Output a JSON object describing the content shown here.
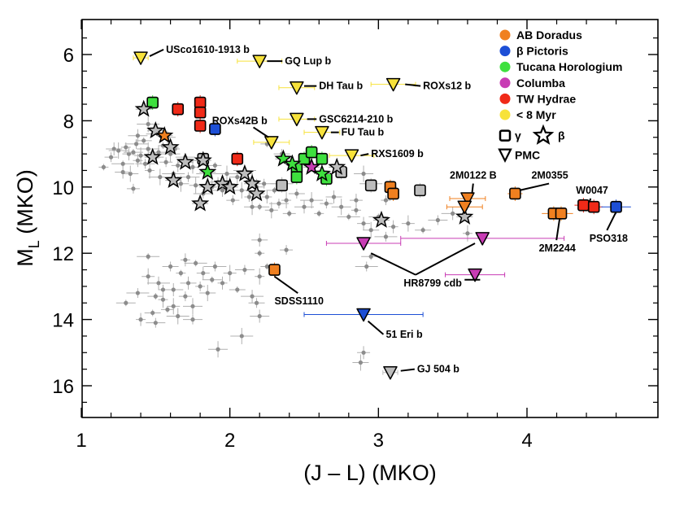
{
  "chart_data": {
    "type": "scatter",
    "title": "",
    "xlabel": "(J – L) (MKO)",
    "ylabel_main": "M",
    "ylabel_sub": "L",
    "ylabel_suffix": " (MKO)",
    "xlim": [
      1.0,
      4.8
    ],
    "ylim": [
      17.0,
      5.2
    ],
    "y_inverted": true,
    "x_ticks": [
      1,
      2,
      3,
      4
    ],
    "x_tick_labels": [
      "1",
      "2",
      "3",
      "4"
    ],
    "y_ticks": [
      6,
      8,
      10,
      12,
      14,
      16
    ],
    "y_tick_labels": [
      "6",
      "8",
      "10",
      "12",
      "14",
      "16"
    ],
    "grid": false,
    "legend_position": "top-right",
    "colors": {
      "field": "#8c8c8c",
      "AB Doradus": "#f08020",
      "beta Pictoris": "#1d4fd6",
      "Tucana Horologium": "#3ee03e",
      "Columba": "#c83cb4",
      "TW Hydrae": "#f02a18",
      "young8": "#f7e23a",
      "gray_young": "#bdbdbd"
    },
    "legend": {
      "groups": [
        {
          "name": "AB Doradus",
          "color_key": "AB Doradus"
        },
        {
          "name": "β Pictoris",
          "color_key": "beta Pictoris"
        },
        {
          "name": "Tucana Horologium",
          "color_key": "Tucana Horologium"
        },
        {
          "name": "Columba",
          "color_key": "Columba"
        },
        {
          "name": "TW Hydrae",
          "color_key": "TW Hydrae"
        },
        {
          "name": "< 8 Myr",
          "color_key": "young8"
        }
      ],
      "gamma_label": "γ",
      "beta_label": "β",
      "pmc_label": "PMC"
    },
    "field_points": [
      [
        1.15,
        9.4
      ],
      [
        1.2,
        9.1
      ],
      [
        1.22,
        8.85
      ],
      [
        1.25,
        8.9
      ],
      [
        1.28,
        9.3
      ],
      [
        1.3,
        8.8
      ],
      [
        1.32,
        9.0
      ],
      [
        1.33,
        9.6
      ],
      [
        1.35,
        8.95
      ],
      [
        1.37,
        8.7
      ],
      [
        1.38,
        9.2
      ],
      [
        1.4,
        9.05
      ],
      [
        1.42,
        8.6
      ],
      [
        1.43,
        9.3
      ],
      [
        1.45,
        8.85
      ],
      [
        1.46,
        9.5
      ],
      [
        1.48,
        8.4
      ],
      [
        1.5,
        9.1
      ],
      [
        1.52,
        8.95
      ],
      [
        1.53,
        9.7
      ],
      [
        1.55,
        8.75
      ],
      [
        1.57,
        9.25
      ],
      [
        1.58,
        8.5
      ],
      [
        1.6,
        9.0
      ],
      [
        1.62,
        9.6
      ],
      [
        1.63,
        8.85
      ],
      [
        1.65,
        9.35
      ],
      [
        1.67,
        9.9
      ],
      [
        1.7,
        9.1
      ],
      [
        1.72,
        9.7
      ],
      [
        1.75,
        9.4
      ],
      [
        1.77,
        9.95
      ],
      [
        1.8,
        9.2
      ],
      [
        1.82,
        10.2
      ],
      [
        1.85,
        9.6
      ],
      [
        1.88,
        10.0
      ],
      [
        1.9,
        9.35
      ],
      [
        1.92,
        9.85
      ],
      [
        1.95,
        10.1
      ],
      [
        1.98,
        9.6
      ],
      [
        2.0,
        9.9
      ],
      [
        2.02,
        10.4
      ],
      [
        2.05,
        9.7
      ],
      [
        2.08,
        10.1
      ],
      [
        2.1,
        9.5
      ],
      [
        2.13,
        10.3
      ],
      [
        2.15,
        9.8
      ],
      [
        2.18,
        10.0
      ],
      [
        2.2,
        10.6
      ],
      [
        2.23,
        9.9
      ],
      [
        2.25,
        10.3
      ],
      [
        2.28,
        10.7
      ],
      [
        2.3,
        10.1
      ],
      [
        2.33,
        10.5
      ],
      [
        2.35,
        9.9
      ],
      [
        2.38,
        10.4
      ],
      [
        2.4,
        10.8
      ],
      [
        2.45,
        10.2
      ],
      [
        2.5,
        10.6
      ],
      [
        2.55,
        10.4
      ],
      [
        2.6,
        10.8
      ],
      [
        2.65,
        10.5
      ],
      [
        2.7,
        10.3
      ],
      [
        2.75,
        10.6
      ],
      [
        2.8,
        10.9
      ],
      [
        2.85,
        10.7
      ],
      [
        2.9,
        11.1
      ],
      [
        2.95,
        11.3
      ],
      [
        3.0,
        10.9
      ],
      [
        3.05,
        11.5
      ],
      [
        3.1,
        11.2
      ],
      [
        3.2,
        11.1
      ],
      [
        3.3,
        11.3
      ],
      [
        3.4,
        11.0
      ],
      [
        3.5,
        10.8
      ],
      [
        3.6,
        11.4
      ],
      [
        2.25,
        8.7
      ],
      [
        2.35,
        9.0
      ],
      [
        1.38,
        8.45
      ],
      [
        1.45,
        8.1
      ],
      [
        1.52,
        8.3
      ],
      [
        1.35,
        10.05
      ],
      [
        1.28,
        9.55
      ],
      [
        2.9,
        9.6
      ],
      [
        2.95,
        9.9
      ],
      [
        3.05,
        10.4
      ],
      [
        2.85,
        10.4
      ],
      [
        2.15,
        10.6
      ],
      [
        1.3,
        13.5
      ],
      [
        1.38,
        13.2
      ],
      [
        1.4,
        14.0
      ],
      [
        1.45,
        12.7
      ],
      [
        1.48,
        13.8
      ],
      [
        1.5,
        14.1
      ],
      [
        1.52,
        12.9
      ],
      [
        1.55,
        13.4
      ],
      [
        1.58,
        13.7
      ],
      [
        1.6,
        12.4
      ],
      [
        1.62,
        13.1
      ],
      [
        1.65,
        13.9
      ],
      [
        1.67,
        12.6
      ],
      [
        1.7,
        13.3
      ],
      [
        1.72,
        12.9
      ],
      [
        1.75,
        13.6
      ],
      [
        1.77,
        12.3
      ],
      [
        1.8,
        13.0
      ],
      [
        1.82,
        12.6
      ],
      [
        1.85,
        13.2
      ],
      [
        1.88,
        12.8
      ],
      [
        1.9,
        12.4
      ],
      [
        1.95,
        12.9
      ],
      [
        2.0,
        12.6
      ],
      [
        2.05,
        13.1
      ],
      [
        2.1,
        12.5
      ],
      [
        2.15,
        13.3
      ],
      [
        2.2,
        12.7
      ],
      [
        2.25,
        12.4
      ],
      [
        2.18,
        13.5
      ],
      [
        2.2,
        13.9
      ],
      [
        2.08,
        14.5
      ],
      [
        2.2,
        12.0
      ],
      [
        2.38,
        11.9
      ],
      [
        2.2,
        11.6
      ],
      [
        1.92,
        14.9
      ],
      [
        1.45,
        12.1
      ],
      [
        1.55,
        13.1
      ],
      [
        2.9,
        15.0
      ],
      [
        2.88,
        15.3
      ],
      [
        2.95,
        12.1
      ],
      [
        2.92,
        12.4
      ],
      [
        1.7,
        12.2
      ],
      [
        1.62,
        13.6
      ],
      [
        1.5,
        13.3
      ],
      [
        1.75,
        14.0
      ]
    ],
    "stars": [
      {
        "x": 1.42,
        "y": 7.65,
        "c": "gray_young"
      },
      {
        "x": 1.5,
        "y": 8.3,
        "c": "gray_young"
      },
      {
        "x": 1.56,
        "y": 8.45,
        "c": "AB Doradus"
      },
      {
        "x": 1.48,
        "y": 9.1,
        "c": "gray_young"
      },
      {
        "x": 1.6,
        "y": 8.8,
        "c": "gray_young"
      },
      {
        "x": 1.7,
        "y": 9.25,
        "c": "gray_young"
      },
      {
        "x": 1.62,
        "y": 9.8,
        "c": "gray_young"
      },
      {
        "x": 1.82,
        "y": 9.2,
        "c": "gray_young"
      },
      {
        "x": 1.85,
        "y": 9.55,
        "c": "Tucana Horologium"
      },
      {
        "x": 1.85,
        "y": 10.0,
        "c": "gray_young"
      },
      {
        "x": 1.95,
        "y": 9.9,
        "c": "gray_young"
      },
      {
        "x": 1.8,
        "y": 10.5,
        "c": "gray_young"
      },
      {
        "x": 2.0,
        "y": 10.0,
        "c": "gray_young"
      },
      {
        "x": 2.1,
        "y": 9.6,
        "c": "gray_young"
      },
      {
        "x": 2.15,
        "y": 9.9,
        "c": "gray_young"
      },
      {
        "x": 2.18,
        "y": 10.2,
        "c": "gray_young"
      },
      {
        "x": 2.36,
        "y": 9.15,
        "c": "Tucana Horologium"
      },
      {
        "x": 2.55,
        "y": 9.4,
        "c": "Columba"
      },
      {
        "x": 2.72,
        "y": 9.4,
        "c": "gray_young"
      },
      {
        "x": 2.42,
        "y": 9.3,
        "c": "Tucana Horologium"
      },
      {
        "x": 2.62,
        "y": 9.6,
        "c": "Tucana Horologium"
      },
      {
        "x": 3.02,
        "y": 11.0,
        "c": "gray_young"
      },
      {
        "x": 3.58,
        "y": 10.9,
        "c": "gray_young"
      }
    ],
    "squares": [
      {
        "x": 1.48,
        "y": 7.45,
        "c": "Tucana Horologium",
        "ex": 0.03
      },
      {
        "x": 1.65,
        "y": 7.65,
        "c": "TW Hydrae",
        "ex": 0.02
      },
      {
        "x": 1.8,
        "y": 7.45,
        "c": "TW Hydrae",
        "ex": 0.02
      },
      {
        "x": 1.8,
        "y": 7.75,
        "c": "TW Hydrae",
        "ex": 0.02
      },
      {
        "x": 1.8,
        "y": 8.15,
        "c": "TW Hydrae",
        "ex": 0.02
      },
      {
        "x": 1.9,
        "y": 8.25,
        "c": "beta Pictoris",
        "ex": 0.02
      },
      {
        "x": 2.05,
        "y": 9.15,
        "c": "TW Hydrae",
        "ex": 0.03
      },
      {
        "x": 1.82,
        "y": 9.15,
        "c": "gray_young",
        "ex": 0.03
      },
      {
        "x": 2.45,
        "y": 9.45,
        "c": "Tucana Horologium",
        "ex": 0.03
      },
      {
        "x": 2.5,
        "y": 9.15,
        "c": "Tucana Horologium",
        "ex": 0.03
      },
      {
        "x": 2.55,
        "y": 8.95,
        "c": "Tucana Horologium",
        "ex": 0.03
      },
      {
        "x": 2.45,
        "y": 9.7,
        "c": "Tucana Horologium",
        "ex": 0.03
      },
      {
        "x": 2.62,
        "y": 9.15,
        "c": "Tucana Horologium",
        "ex": 0.03
      },
      {
        "x": 2.65,
        "y": 9.75,
        "c": "Tucana Horologium",
        "ex": 0.03
      },
      {
        "x": 2.75,
        "y": 9.55,
        "c": "gray_young",
        "ex": 0.03
      },
      {
        "x": 2.35,
        "y": 9.95,
        "c": "gray_young",
        "ex": 0.03
      },
      {
        "x": 2.95,
        "y": 9.95,
        "c": "gray_young",
        "ex": 0.03
      },
      {
        "x": 3.08,
        "y": 10.0,
        "c": "AB Doradus",
        "ex": 0.04
      },
      {
        "x": 3.1,
        "y": 10.2,
        "c": "AB Doradus",
        "ex": 0.04
      },
      {
        "x": 3.28,
        "y": 10.1,
        "c": "gray_young",
        "ex": 0.04
      },
      {
        "x": 3.92,
        "y": 10.2,
        "c": "AB Doradus",
        "ex": 0.05
      },
      {
        "x": 4.18,
        "y": 10.8,
        "c": "AB Doradus",
        "ex": 0.08
      },
      {
        "x": 4.23,
        "y": 10.8,
        "c": "AB Doradus",
        "ex": 0.08
      },
      {
        "x": 4.38,
        "y": 10.55,
        "c": "TW Hydrae",
        "ex": 0.06
      },
      {
        "x": 4.45,
        "y": 10.6,
        "c": "TW Hydrae",
        "ex": 0.06
      },
      {
        "x": 4.6,
        "y": 10.6,
        "c": "beta Pictoris",
        "ex": 0.1
      },
      {
        "x": 2.3,
        "y": 12.5,
        "c": "AB Doradus",
        "ex": 0.04
      }
    ],
    "triangles": [
      {
        "x": 1.4,
        "y": 6.1,
        "c": "young8",
        "ex": 0.05
      },
      {
        "x": 2.2,
        "y": 6.2,
        "c": "young8",
        "ex": 0.15
      },
      {
        "x": 2.45,
        "y": 7.0,
        "c": "young8",
        "ex": 0.12
      },
      {
        "x": 3.1,
        "y": 6.9,
        "c": "young8",
        "ex": 0.15
      },
      {
        "x": 2.45,
        "y": 7.95,
        "c": "young8",
        "ex": 0.12
      },
      {
        "x": 2.62,
        "y": 8.35,
        "c": "young8",
        "ex": 0.12
      },
      {
        "x": 2.28,
        "y": 8.65,
        "c": "young8",
        "ex": 0.12
      },
      {
        "x": 2.82,
        "y": 9.05,
        "c": "young8",
        "ex": 0.15
      },
      {
        "x": 3.6,
        "y": 10.35,
        "c": "AB Doradus",
        "ex": 0.12
      },
      {
        "x": 3.58,
        "y": 10.6,
        "c": "AB Doradus",
        "ex": 0.12
      },
      {
        "x": 2.9,
        "y": 11.7,
        "c": "Columba",
        "ex": 0.25
      },
      {
        "x": 3.7,
        "y": 11.55,
        "c": "Columba",
        "ex": 0.55
      },
      {
        "x": 3.65,
        "y": 12.65,
        "c": "Columba",
        "ex": 0.2
      },
      {
        "x": 2.9,
        "y": 13.85,
        "c": "beta Pictoris",
        "ex": 0.4
      },
      {
        "x": 3.08,
        "y": 15.6,
        "c": "gray_young",
        "ex": 0.05
      }
    ],
    "annotations": [
      {
        "text": "USco1610-1913 b",
        "lx": 1.57,
        "ly": 5.85,
        "tx": 1.57,
        "ty": 5.85,
        "sx": 1.46,
        "sy": 6.05
      },
      {
        "text": "GQ Lup b",
        "lx": 2.37,
        "ly": 6.2,
        "tx": 2.37,
        "ty": 6.2,
        "sx": 2.25,
        "sy": 6.2
      },
      {
        "text": "DH Tau b",
        "lx": 2.6,
        "ly": 6.95,
        "tx": 2.6,
        "ty": 6.95,
        "sx": 2.5,
        "sy": 6.95
      },
      {
        "text": "ROXs12 b",
        "lx": 3.3,
        "ly": 6.95,
        "tx": 3.3,
        "ty": 6.95,
        "sx": 3.18,
        "sy": 6.9
      },
      {
        "text": "ROXs42B b",
        "lx": 1.88,
        "ly": 8.0,
        "tx": 1.88,
        "ty": 8.0,
        "sx": 2.26,
        "sy": 8.5
      },
      {
        "text": "GSC6214-210 b",
        "lx": 2.6,
        "ly": 7.95,
        "tx": 2.6,
        "ty": 7.95,
        "sx": 2.52,
        "sy": 7.95
      },
      {
        "text": "FU Tau b",
        "lx": 2.75,
        "ly": 8.35,
        "tx": 2.75,
        "ty": 8.35,
        "sx": 2.68,
        "sy": 8.35
      },
      {
        "text": "RXS1609 b",
        "lx": 2.95,
        "ly": 9.0,
        "tx": 2.95,
        "ty": 9.0,
        "sx": 2.88,
        "sy": 9.05
      },
      {
        "text": "2M0122 B",
        "lx": 3.48,
        "ly": 9.65,
        "tx": 3.48,
        "ty": 9.65,
        "sx": 3.63,
        "sy": 10.2
      },
      {
        "text": "2M0355",
        "lx": 4.03,
        "ly": 9.65,
        "tx": 4.03,
        "ty": 9.65,
        "sx": 3.95,
        "sy": 10.1
      },
      {
        "text": "W0047",
        "lx": 4.33,
        "ly": 10.1,
        "tx": 4.33,
        "ty": 10.1,
        "sx": 4.42,
        "sy": 10.45
      },
      {
        "text": "2M2244",
        "lx": 4.08,
        "ly": 11.85,
        "tx": 4.08,
        "ty": 11.85,
        "sx": 4.22,
        "sy": 10.95
      },
      {
        "text": "PSO318",
        "lx": 4.42,
        "ly": 11.55,
        "tx": 4.42,
        "ty": 11.55,
        "sx": 4.6,
        "sy": 10.75
      },
      {
        "text": "HR8799 cdb",
        "lx": 3.17,
        "ly": 12.9,
        "tx": 3.17,
        "ty": 12.9,
        "sx": 0,
        "sy": 0
      },
      {
        "text": "SDSS1110",
        "lx": 2.3,
        "ly": 13.45,
        "tx": 2.3,
        "ty": 13.45,
        "sx": 2.3,
        "sy": 12.7
      },
      {
        "text": "51 Eri b",
        "lx": 3.05,
        "ly": 14.45,
        "tx": 3.05,
        "ty": 14.45,
        "sx": 2.93,
        "sy": 14.05
      },
      {
        "text": "GJ 504 b",
        "lx": 3.26,
        "ly": 15.5,
        "tx": 3.26,
        "ty": 15.5,
        "sx": 3.15,
        "sy": 15.55
      }
    ]
  }
}
